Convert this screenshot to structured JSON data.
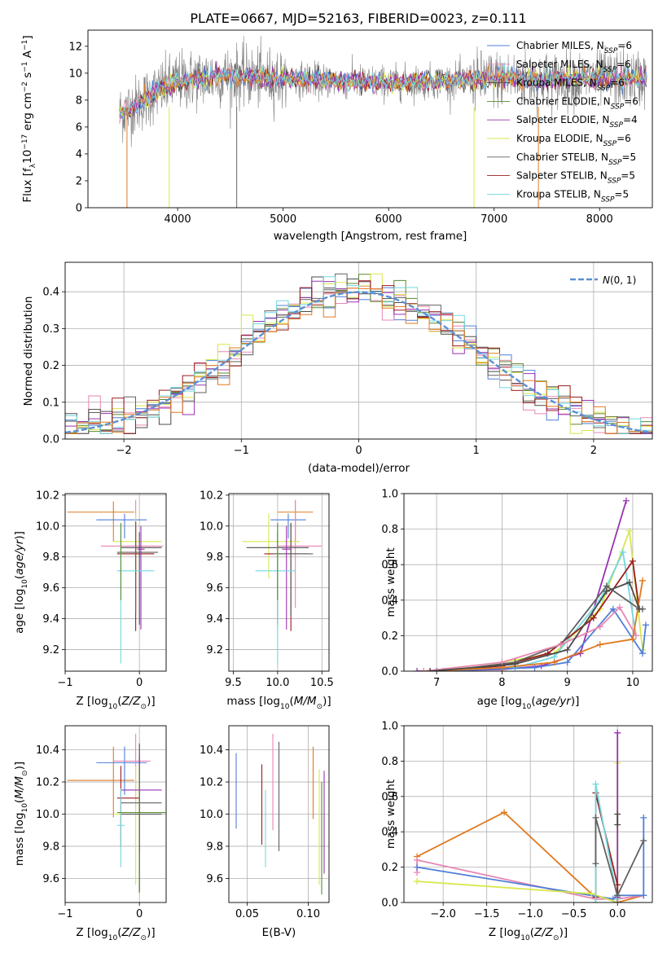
{
  "figure_title": "PLATE=0667, MJD=52163, FIBERID=0023, z=0.111",
  "colors": {
    "Chabrier MILES": "#4f7fd8",
    "Salpeter MILES": "#e887b4",
    "Kroupa MILES": "#4b4b4b",
    "Chabrier ELODIE": "#5a8a2e",
    "Salpeter ELODIE": "#9932b0",
    "Kroupa ELODIE": "#d8e84a",
    "Chabrier STELIB": "#606060",
    "Salpeter STELIB": "#9b1c1c",
    "Kroupa STELIB": "#72d8e0",
    "spectrum": "#808080",
    "extra": "#e07a20"
  },
  "chart_data": [
    {
      "id": "spectrum",
      "type": "line",
      "title": "PLATE=0667, MJD=52163, FIBERID=0023, z=0.111",
      "xlabel": "wavelength [Angstrom, rest frame]",
      "ylabel": "Flux [f_λ 10^-17 erg cm^-2 s^-1 A^-1]",
      "xlim": [
        3150,
        8500
      ],
      "ylim": [
        0,
        13.2
      ],
      "xticks": [
        4000,
        5000,
        6000,
        7000,
        8000
      ],
      "yticks": [
        0,
        2,
        4,
        6,
        8,
        10,
        12
      ],
      "legend_position": "right",
      "legend": [
        "Chabrier MILES, N_SSP=6",
        "Salpeter MILES, N_SSP=6",
        "Kroupa MILES, N_SSP=6",
        "Chabrier ELODIE, N_SSP=6",
        "Salpeter ELODIE, N_SSP=4",
        "Kroupa ELODIE, N_SSP=6",
        "Chabrier STELIB, N_SSP=5",
        "Salpeter STELIB, N_SSP=5",
        "Kroupa STELIB, N_SSP=5"
      ],
      "continuum": [
        [
          3450,
          7.0
        ],
        [
          3600,
          7.6
        ],
        [
          3800,
          8.6
        ],
        [
          4000,
          9.4
        ],
        [
          4400,
          9.8
        ],
        [
          5000,
          9.6
        ],
        [
          5500,
          9.4
        ],
        [
          6000,
          9.3
        ],
        [
          6500,
          9.4
        ],
        [
          7000,
          9.6
        ],
        [
          7500,
          9.5
        ],
        [
          8000,
          9.6
        ],
        [
          8450,
          9.6
        ]
      ],
      "range": [
        3450,
        8450
      ]
    },
    {
      "id": "residuals",
      "type": "line",
      "xlabel": "(data-model)/error",
      "ylabel": "Normed distribution",
      "xlim": [
        -2.5,
        2.5
      ],
      "ylim": [
        0,
        0.48
      ],
      "xticks": [
        -2,
        -1,
        0,
        1,
        2
      ],
      "yticks": [
        0.0,
        0.1,
        0.2,
        0.3,
        0.4
      ],
      "legend": [
        "N(0,1)"
      ],
      "legend_position": "top-right",
      "grid": true
    },
    {
      "id": "age_vs_Z",
      "type": "scatter",
      "xlabel": "Z [log10(Z/Z☉)]",
      "ylabel": "age [log10(age/yr)]",
      "xlim": [
        -1.0,
        0.36
      ],
      "ylim": [
        9.06,
        10.21
      ],
      "xticks": [
        -1,
        0
      ],
      "yticks": [
        9.2,
        9.4,
        9.6,
        9.8,
        10.0,
        10.2
      ],
      "grid": true,
      "points": [
        {
          "model": "extra",
          "x": -0.35,
          "y": 10.09,
          "xerr": [
            0.62,
            0.28
          ],
          "yerr": [
            0.19,
            0.07
          ]
        },
        {
          "model": "Chabrier MILES",
          "x": -0.2,
          "y": 10.04,
          "xerr": [
            0.38,
            0.3
          ],
          "yerr": [
            0.12,
            0.04
          ]
        },
        {
          "model": "Salpeter MILES",
          "x": -0.05,
          "y": 9.87,
          "xerr": [
            0.47,
            0.37
          ],
          "yerr": [
            0.4,
            0.3
          ]
        },
        {
          "model": "Kroupa ELODIE",
          "x": -0.05,
          "y": 9.9,
          "xerr": [
            0.3,
            0.35
          ],
          "yerr": [
            0.24,
            0.18
          ]
        },
        {
          "model": "Kroupa MILES",
          "x": 0.0,
          "y": 9.86,
          "xerr": [
            0.25,
            0.3
          ],
          "yerr": [
            0.5,
            0.1
          ]
        },
        {
          "model": "Salpeter STELIB",
          "x": -0.05,
          "y": 9.82,
          "xerr": [
            0.25,
            0.25
          ],
          "yerr": [
            0.5,
            0.2
          ]
        },
        {
          "model": "Chabrier STELIB",
          "x": -0.05,
          "y": 9.83,
          "xerr": [
            0.25,
            0.3
          ],
          "yerr": [
            0.4,
            0.2
          ]
        },
        {
          "model": "Salpeter ELODIE",
          "x": 0.02,
          "y": 9.85,
          "xerr": [
            0.05,
            0.05
          ],
          "yerr": [
            0.52,
            0.15
          ]
        },
        {
          "model": "Kroupa STELIB",
          "x": -0.25,
          "y": 9.71,
          "xerr": [
            0.05,
            0.45
          ],
          "yerr": [
            0.6,
            0.3
          ]
        },
        {
          "model": "Chabrier ELODIE",
          "x": -0.25,
          "y": 9.82,
          "xerr": [
            0.02,
            0.02
          ],
          "yerr": [
            0.3,
            0.2
          ]
        }
      ]
    },
    {
      "id": "age_vs_mass",
      "type": "scatter",
      "xlabel": "mass [log10(M/M☉)]",
      "ylabel": "",
      "xlim": [
        9.45,
        10.58
      ],
      "ylim": [
        9.06,
        10.21
      ],
      "xticks": [
        9.5,
        10.0,
        10.5
      ],
      "yticks": [
        9.2,
        9.4,
        9.6,
        9.8,
        10.0,
        10.2
      ],
      "grid": true,
      "points": [
        {
          "model": "extra",
          "x": 10.2,
          "y": 10.09,
          "xerr": [
            0.2,
            0.2
          ],
          "yerr": [
            0.19,
            0.07
          ]
        },
        {
          "model": "Chabrier MILES",
          "x": 10.12,
          "y": 10.04,
          "xerr": [
            0.2,
            0.2
          ],
          "yerr": [
            0.12,
            0.04
          ]
        },
        {
          "model": "Salpeter MILES",
          "x": 10.2,
          "y": 9.87,
          "xerr": [
            0.2,
            0.3
          ],
          "yerr": [
            0.4,
            0.3
          ]
        },
        {
          "model": "Kroupa ELODIE",
          "x": 9.9,
          "y": 9.9,
          "xerr": [
            0.3,
            0.35
          ],
          "yerr": [
            0.24,
            0.18
          ]
        },
        {
          "model": "Kroupa MILES",
          "x": 10.0,
          "y": 9.86,
          "xerr": [
            0.35,
            0.35
          ],
          "yerr": [
            0.5,
            0.1
          ]
        },
        {
          "model": "Salpeter STELIB",
          "x": 10.15,
          "y": 9.82,
          "xerr": [
            0.3,
            0.2
          ],
          "yerr": [
            0.5,
            0.2
          ]
        },
        {
          "model": "Chabrier STELIB",
          "x": 10.15,
          "y": 9.82,
          "xerr": [
            0.2,
            0.25
          ],
          "yerr": [
            0.4,
            0.2
          ]
        },
        {
          "model": "Salpeter ELODIE",
          "x": 10.1,
          "y": 9.85,
          "xerr": [
            0.05,
            0.05
          ],
          "yerr": [
            0.52,
            0.15
          ]
        },
        {
          "model": "Kroupa STELIB",
          "x": 10.0,
          "y": 9.71,
          "xerr": [
            0.25,
            0.2
          ],
          "yerr": [
            0.6,
            0.3
          ]
        },
        {
          "model": "Chabrier ELODIE",
          "x": 10.0,
          "y": 9.82,
          "xerr": [
            0.02,
            0.02
          ],
          "yerr": [
            0.3,
            0.2
          ]
        }
      ]
    },
    {
      "id": "weight_vs_age",
      "type": "line",
      "xlabel": "age [log10(age/yr)]",
      "ylabel": "mass weight",
      "xlim": [
        6.5,
        10.3
      ],
      "ylim": [
        0.0,
        1.0
      ],
      "xticks": [
        7,
        8,
        9,
        10
      ],
      "yticks": [
        0.0,
        0.2,
        0.4,
        0.6,
        0.8,
        1.0
      ],
      "grid": true,
      "series": [
        {
          "model": "Salpeter ELODIE",
          "x": [
            6.7,
            8.0,
            8.6,
            9.2,
            9.9
          ],
          "y": [
            0.0,
            0.01,
            0.03,
            0.1,
            0.96
          ]
        },
        {
          "model": "Kroupa ELODIE",
          "x": [
            6.8,
            8.0,
            8.8,
            9.5,
            9.95,
            10.15
          ],
          "y": [
            0.0,
            0.05,
            0.1,
            0.35,
            0.79,
            0.12
          ]
        },
        {
          "model": "Kroupa STELIB",
          "x": [
            6.9,
            8.2,
            8.8,
            9.5,
            9.85,
            10.05
          ],
          "y": [
            0.0,
            0.02,
            0.08,
            0.4,
            0.67,
            0.2
          ]
        },
        {
          "model": "Salpeter STELIB",
          "x": [
            7.0,
            8.0,
            8.7,
            9.4,
            10.0,
            10.1
          ],
          "y": [
            0.0,
            0.03,
            0.1,
            0.3,
            0.62,
            0.35
          ]
        },
        {
          "model": "Chabrier STELIB",
          "x": [
            7.1,
            8.2,
            8.9,
            9.6,
            10.1,
            10.15
          ],
          "y": [
            0.0,
            0.05,
            0.15,
            0.48,
            0.35,
            0.35
          ]
        },
        {
          "model": "Chabrier MILES",
          "x": [
            7.0,
            8.5,
            9.0,
            9.7,
            10.15,
            10.2
          ],
          "y": [
            0.0,
            0.02,
            0.05,
            0.35,
            0.1,
            0.26
          ]
        },
        {
          "model": "Salpeter MILES",
          "x": [
            6.8,
            8.0,
            8.9,
            9.5,
            9.8,
            10.05
          ],
          "y": [
            0.0,
            0.05,
            0.15,
            0.25,
            0.36,
            0.2
          ]
        },
        {
          "model": "extra",
          "x": [
            6.9,
            8.0,
            8.8,
            9.5,
            10.0,
            10.15
          ],
          "y": [
            0.0,
            0.02,
            0.05,
            0.15,
            0.18,
            0.51
          ]
        },
        {
          "model": "Kroupa MILES",
          "x": [
            6.9,
            8.2,
            9.0,
            9.6,
            9.95,
            10.1
          ],
          "y": [
            0.0,
            0.04,
            0.12,
            0.45,
            0.5,
            0.35
          ]
        }
      ]
    },
    {
      "id": "mass_vs_Z",
      "type": "scatter",
      "xlabel": "Z [log10(Z/Z☉)]",
      "ylabel": "mass [log10(M/M☉)]",
      "xlim": [
        -1.0,
        0.36
      ],
      "ylim": [
        9.45,
        10.55
      ],
      "xticks": [
        -1,
        0
      ],
      "yticks": [
        9.6,
        9.8,
        10.0,
        10.2,
        10.4
      ],
      "grid": true,
      "points": [
        {
          "model": "extra",
          "x": -0.35,
          "y": 10.21,
          "xerr": [
            0.62,
            0.28
          ],
          "yerr": [
            0.23,
            0.21
          ]
        },
        {
          "model": "Chabrier MILES",
          "x": -0.2,
          "y": 10.32,
          "xerr": [
            0.38,
            0.3
          ],
          "yerr": [
            0.2,
            0.1
          ]
        },
        {
          "model": "Salpeter MILES",
          "x": -0.05,
          "y": 10.33,
          "xerr": [
            0.3,
            0.2
          ],
          "yerr": [
            0.3,
            0.17
          ]
        },
        {
          "model": "Kroupa ELODIE",
          "x": -0.05,
          "y": 10.0,
          "xerr": [
            0.3,
            0.35
          ],
          "yerr": [
            0.44,
            0.3
          ]
        },
        {
          "model": "Kroupa MILES",
          "x": 0.0,
          "y": 10.0,
          "xerr": [
            0.25,
            0.3
          ],
          "yerr": [
            0.48,
            0.44
          ]
        },
        {
          "model": "Salpeter STELIB",
          "x": -0.25,
          "y": 10.1,
          "xerr": [
            0.05,
            0.25
          ],
          "yerr": [
            0.3,
            0.2
          ]
        },
        {
          "model": "Chabrier STELIB",
          "x": 0.0,
          "y": 10.07,
          "xerr": [
            0.25,
            0.3
          ],
          "yerr": [
            0.3,
            0.3
          ]
        },
        {
          "model": "Salpeter ELODIE",
          "x": 0.0,
          "y": 10.15,
          "xerr": [
            0.25,
            0.3
          ],
          "yerr": [
            0.4,
            0.2
          ]
        },
        {
          "model": "Kroupa STELIB",
          "x": -0.25,
          "y": 9.93,
          "xerr": [
            0.05,
            0.05
          ],
          "yerr": [
            0.26,
            0.23
          ]
        },
        {
          "model": "Chabrier ELODIE",
          "x": 0.0,
          "y": 10.01,
          "xerr": [
            0.3,
            0.35
          ],
          "yerr": [
            0.5,
            0.3
          ]
        }
      ]
    },
    {
      "id": "mass_vs_ebv",
      "type": "scatter",
      "xlabel": "E(B-V)",
      "ylabel": "",
      "xlim": [
        0.035,
        0.117
      ],
      "ylim": [
        9.45,
        10.55
      ],
      "xticks": [
        0.05,
        0.1
      ],
      "yticks": [
        9.6,
        9.8,
        10.0,
        10.2,
        10.4
      ],
      "grid": true,
      "points": [
        {
          "model": "Chabrier MILES",
          "x": 0.041,
          "y": 10.15,
          "xerr": [
            0,
            0
          ],
          "yerr": [
            0.24,
            0.23
          ]
        },
        {
          "model": "Salpeter STELIB",
          "x": 0.062,
          "y": 10.06,
          "xerr": [
            0,
            0
          ],
          "yerr": [
            0.25,
            0.25
          ]
        },
        {
          "model": "Kroupa STELIB",
          "x": 0.065,
          "y": 9.91,
          "xerr": [
            0,
            0
          ],
          "yerr": [
            0.24,
            0.24
          ]
        },
        {
          "model": "Salpeter MILES",
          "x": 0.071,
          "y": 10.2,
          "xerr": [
            0,
            0
          ],
          "yerr": [
            0.3,
            0.3
          ]
        },
        {
          "model": "Chabrier STELIB",
          "x": 0.076,
          "y": 10.11,
          "xerr": [
            0,
            0
          ],
          "yerr": [
            0.34,
            0.34
          ]
        },
        {
          "model": "extra",
          "x": 0.104,
          "y": 10.2,
          "xerr": [
            0,
            0
          ],
          "yerr": [
            0.23,
            0.22
          ]
        },
        {
          "model": "Kroupa ELODIE",
          "x": 0.109,
          "y": 9.92,
          "xerr": [
            0,
            0
          ],
          "yerr": [
            0.36,
            0.36
          ]
        },
        {
          "model": "Salpeter ELODIE",
          "x": 0.113,
          "y": 9.95,
          "xerr": [
            0,
            0
          ],
          "yerr": [
            0.32,
            0.32
          ]
        },
        {
          "model": "Chabrier ELODIE",
          "x": 0.111,
          "y": 9.85,
          "xerr": [
            0,
            0
          ],
          "yerr": [
            0.35,
            0.35
          ]
        }
      ]
    },
    {
      "id": "weight_vs_Z",
      "type": "line",
      "xlabel": "Z [log10(Z/Z☉)]",
      "ylabel": "mass weight",
      "xlim": [
        -2.45,
        0.4
      ],
      "ylim": [
        0.0,
        1.0
      ],
      "xticks": [
        -2.0,
        -1.5,
        -1.0,
        -0.5,
        0.0
      ],
      "yticks": [
        0.0,
        0.2,
        0.4,
        0.6,
        0.8,
        1.0
      ],
      "grid": true,
      "series": [
        {
          "model": "extra",
          "x": [
            -2.3,
            -1.3,
            -0.3,
            0.0,
            0.3
          ],
          "y": [
            0.26,
            0.51,
            0.05,
            0.0,
            0.04
          ]
        },
        {
          "model": "Salpeter MILES",
          "x": [
            -2.3,
            -2.3,
            -0.25,
            0.0,
            0.3
          ],
          "y": [
            0.17,
            0.24,
            0.02,
            0.02,
            0.04
          ]
        },
        {
          "model": "Chabrier MILES",
          "x": [
            -2.3,
            -0.05,
            0.0,
            0.3,
            0.3
          ],
          "y": [
            0.2,
            0.02,
            0.04,
            0.04,
            0.48
          ]
        },
        {
          "model": "Kroupa ELODIE",
          "x": [
            -2.3,
            -0.3,
            0.0,
            0.0
          ],
          "y": [
            0.12,
            0.05,
            0.0,
            0.79
          ]
        },
        {
          "model": "Salpeter ELODIE",
          "x": [
            0.0,
            0.0,
            0.0
          ],
          "y": [
            0.0,
            0.03,
            0.96
          ]
        },
        {
          "model": "Salpeter STELIB",
          "x": [
            -0.25,
            -0.25,
            0.0,
            0.0
          ],
          "y": [
            0.03,
            0.62,
            0.1,
            0.0
          ]
        },
        {
          "model": "Kroupa STELIB",
          "x": [
            -0.25,
            -0.25,
            0.0
          ],
          "y": [
            0.0,
            0.67,
            0.02
          ]
        },
        {
          "model": "Chabrier STELIB",
          "x": [
            -0.25,
            -0.25,
            0.0,
            0.3
          ],
          "y": [
            0.22,
            0.48,
            0.04,
            0.35
          ]
        },
        {
          "model": "Kroupa MILES",
          "x": [
            0.0,
            0.0
          ],
          "y": [
            0.44,
            0.5
          ]
        }
      ]
    }
  ]
}
